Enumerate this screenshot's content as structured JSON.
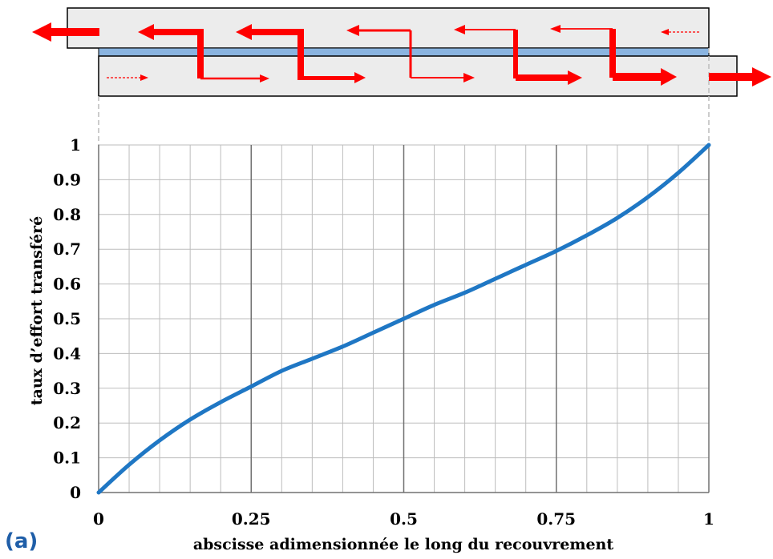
{
  "panel_label": "(a)",
  "colors": {
    "curve": "#1f77c4",
    "arrows": "#ff0000",
    "adhesive": "#8ab4e0",
    "adherend": "#ececec",
    "grid_major": "#707070",
    "grid_minor": "#bdbdbd"
  },
  "chart_data": {
    "type": "line",
    "title": "",
    "xlabel": "abscisse adimensionnée le long du recouvrement",
    "ylabel": "taux d’effort  transféré",
    "xlim": [
      0,
      1
    ],
    "ylim": [
      0,
      1
    ],
    "x_ticks": [
      0,
      0.25,
      0.5,
      0.75,
      1
    ],
    "x_tick_labels": [
      "0",
      "0.25",
      "0.5",
      "0.75",
      "1"
    ],
    "y_ticks": [
      0,
      0.1,
      0.2,
      0.3,
      0.4,
      0.5,
      0.6,
      0.7,
      0.8,
      0.9,
      1
    ],
    "y_tick_labels": [
      "0",
      "0.1",
      "0.2",
      "0.3",
      "0.4",
      "0.5",
      "0.6",
      "0.7",
      "0.8",
      "0.9",
      "1"
    ],
    "grid": true,
    "minor_x_step": 0.05,
    "series": [
      {
        "x": [
          0,
          0.05,
          0.1,
          0.15,
          0.2,
          0.25,
          0.3,
          0.35,
          0.4,
          0.45,
          0.5,
          0.55,
          0.6,
          0.65,
          0.7,
          0.75,
          0.8,
          0.85,
          0.9,
          0.95,
          1
        ],
        "y": [
          0,
          0.08,
          0.15,
          0.21,
          0.26,
          0.305,
          0.35,
          0.385,
          0.42,
          0.46,
          0.5,
          0.54,
          0.575,
          0.615,
          0.655,
          0.695,
          0.74,
          0.79,
          0.85,
          0.92,
          1
        ]
      }
    ]
  }
}
